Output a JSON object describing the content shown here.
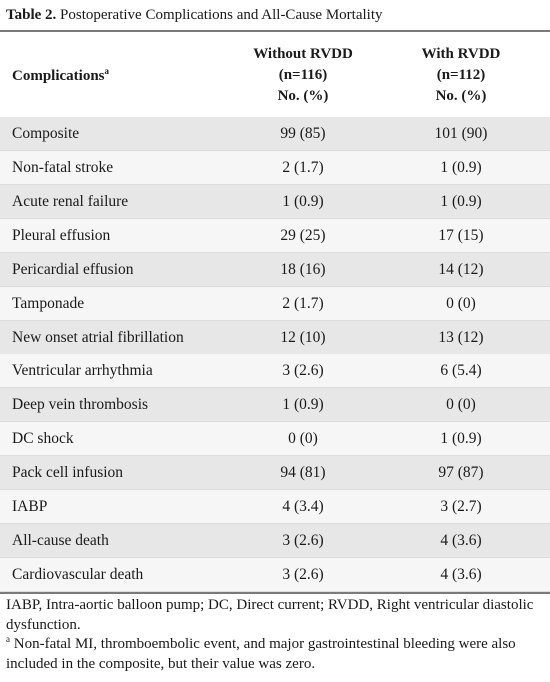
{
  "caption": {
    "label": "Table 2.",
    "title": " Postoperative Complications and All-Cause Mortality"
  },
  "header": {
    "col1": "Complications",
    "col1_mark": "a",
    "col2": [
      "Without RVDD",
      "(n=116)",
      "No. (%)"
    ],
    "col3": [
      "With RVDD",
      "(n=112)",
      "No. (%)"
    ]
  },
  "rows": [
    {
      "name": "Composite",
      "without": "99 (85)",
      "with": "101 (90)"
    },
    {
      "name": "Non-fatal stroke",
      "without": "2 (1.7)",
      "with": "1 (0.9)"
    },
    {
      "name": "Acute renal failure",
      "without": "1 (0.9)",
      "with": "1 (0.9)"
    },
    {
      "name": "Pleural effusion",
      "without": "29 (25)",
      "with": "17 (15)"
    },
    {
      "name": "Pericardial effusion",
      "without": "18 (16)",
      "with": "14 (12)"
    },
    {
      "name": "Tamponade",
      "without": "2 (1.7)",
      "with": "0 (0)"
    },
    {
      "name": "New onset atrial fibrillation",
      "without": "12 (10)",
      "with": "13 (12)"
    },
    {
      "name": "Ventricular arrhythmia",
      "without": "3 (2.6)",
      "with": "6 (5.4)"
    },
    {
      "name": "Deep vein thrombosis",
      "without": "1 (0.9)",
      "with": "0 (0)"
    },
    {
      "name": "DC shock",
      "without": "0 (0)",
      "with": "1 (0.9)"
    },
    {
      "name": "Pack cell infusion",
      "without": "94 (81)",
      "with": "97 (87)"
    },
    {
      "name": "IABP",
      "without": "4 (3.4)",
      "with": "3 (2.7)"
    },
    {
      "name": "All-cause death",
      "without": "3 (2.6)",
      "with": "4 (3.6)"
    },
    {
      "name": "Cardiovascular death",
      "without": "3 (2.6)",
      "with": "4 (3.6)"
    }
  ],
  "footnotes": {
    "abbreviations": "IABP, Intra-aortic balloon pump; DC, Direct current; RVDD, Right ventricular diastolic dysfunction.",
    "note_mark": "a",
    "note": " Non-fatal MI, thromboembolic event, and major gastrointestinal bleeding were also included in the composite, but their value was zero."
  }
}
